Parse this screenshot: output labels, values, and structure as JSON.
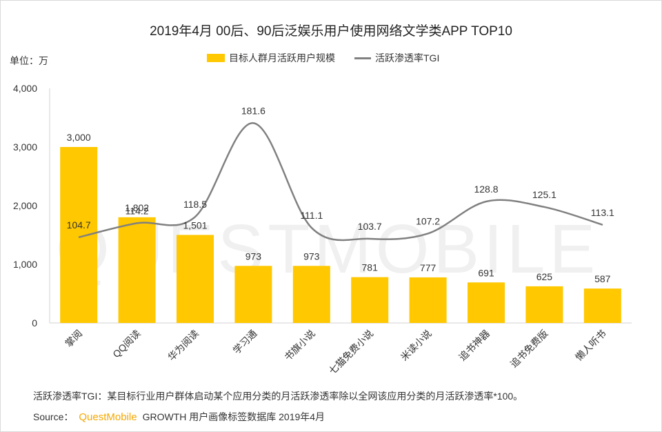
{
  "title": "2019年4月 00后、90后泛娱乐用户使用网络文学类APP TOP10",
  "unit_label": "单位：万",
  "footnote": "活跃渗透率TGI：某目标行业用户群体启动某个应用分类的月活跃渗透率除以全网该应用分类的月活跃渗透率*100。",
  "source": {
    "label": "Source：",
    "brand": "QuestMobile",
    "text": "GROWTH 用户画像标签数据库 2019年4月"
  },
  "watermark": "QUESTMOBILE",
  "colors": {
    "bar": "#FFC800",
    "line": "#808080",
    "axis": "#d0d0d0",
    "text": "#333333",
    "brand": "#f5a800"
  },
  "chart_data": {
    "type": "bar",
    "categories": [
      "掌阅",
      "QQ阅读",
      "华为阅读",
      "学习通",
      "书旗小说",
      "七猫免费小说",
      "米读小说",
      "追书神器",
      "追书免费版",
      "懒人听书"
    ],
    "series": [
      {
        "name": "目标人群月活跃用户规模",
        "type": "bar",
        "values": [
          3000,
          1802,
          1501,
          973,
          973,
          781,
          777,
          691,
          625,
          587
        ],
        "labels": [
          "3,000",
          "1,802",
          "1,501",
          "973",
          "973",
          "781",
          "777",
          "691",
          "625",
          "587"
        ]
      },
      {
        "name": "活跃渗透率TGI",
        "type": "line",
        "values": [
          104.7,
          114.2,
          118.5,
          181.6,
          111.1,
          103.7,
          107.2,
          128.8,
          125.1,
          113.1
        ],
        "labels": [
          "104.7",
          "114.2",
          "118.5",
          "181.6",
          "111.1",
          "103.7",
          "107.2",
          "128.8",
          "125.1",
          "113.1"
        ]
      }
    ],
    "yaxis": {
      "ticks": [
        0,
        1000,
        2000,
        3000,
        4000
      ],
      "tick_labels": [
        "0",
        "1,000",
        "2,000",
        "3,000",
        "4,000"
      ],
      "ylim": [
        0,
        4000
      ]
    },
    "legend_position": "top-center",
    "grid": false
  }
}
